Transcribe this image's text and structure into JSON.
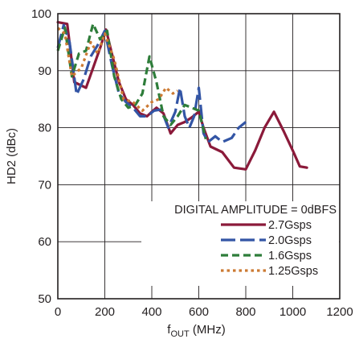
{
  "chart_data": {
    "type": "line",
    "xlabel_main": "f",
    "xlabel_sub": "OUT",
    "xlabel_unit": " (MHz)",
    "ylabel": "HD2 (dBc)",
    "xlim": [
      0,
      1200
    ],
    "ylim": [
      50,
      100
    ],
    "xticks": [
      "0",
      "200",
      "400",
      "600",
      "800",
      "1000",
      "1200"
    ],
    "yticks": [
      "50",
      "60",
      "70",
      "80",
      "90",
      "100"
    ],
    "grid": true,
    "legend_title": "DIGITAL AMPLITUDE = 0dBFS",
    "legend_position": "bottom-right",
    "series": [
      {
        "name": "2.7Gsps",
        "color": "#8b1a3a",
        "dash": "solid",
        "x": [
          0,
          40,
          70,
          120,
          150,
          180,
          205,
          230,
          260,
          290,
          320,
          350,
          380,
          400,
          420,
          450,
          480,
          510,
          540,
          570,
          600,
          620,
          650,
          700,
          750,
          800,
          840,
          880,
          920,
          960,
          1000,
          1030,
          1060
        ],
        "y": [
          98.5,
          98.2,
          88,
          87,
          90.5,
          94,
          97.2,
          93,
          88,
          85,
          84,
          82.5,
          82,
          82.8,
          83.5,
          82.5,
          79,
          80.5,
          81,
          81.8,
          82.8,
          80,
          76.7,
          75.7,
          73,
          72.7,
          76,
          80,
          82.8,
          79.5,
          76,
          73.2,
          73
        ]
      },
      {
        "name": "2.0Gsps",
        "color": "#3355a5",
        "dash": "long",
        "x": [
          0,
          25,
          50,
          80,
          110,
          140,
          170,
          200,
          230,
          260,
          290,
          320,
          350,
          380,
          410,
          440,
          470,
          500,
          520,
          540,
          560,
          580,
          600,
          620,
          640,
          670,
          700,
          740,
          770,
          800
        ],
        "y": [
          94,
          98,
          95,
          85.8,
          88.5,
          92.5,
          94.5,
          97,
          91,
          86,
          84.5,
          83.5,
          82,
          82,
          83,
          83.2,
          80,
          82.8,
          87,
          82,
          80,
          82,
          87,
          79,
          77.5,
          78.5,
          77.5,
          78.2,
          80,
          81
        ]
      },
      {
        "name": "1.6Gsps",
        "color": "#2e7d3a",
        "dash": "medium",
        "x": [
          0,
          30,
          60,
          90,
          120,
          150,
          180,
          210,
          240,
          270,
          300,
          330,
          360,
          390,
          420,
          450,
          480,
          510,
          540,
          570,
          600,
          630
        ],
        "y": [
          93.5,
          97.5,
          89,
          93,
          93.5,
          98.2,
          95.5,
          97,
          89,
          85,
          83.5,
          84,
          86,
          92.5,
          88,
          82,
          80.5,
          82,
          84,
          83.5,
          83,
          78
        ]
      },
      {
        "name": "1.25Gsps",
        "color": "#cc7a33",
        "dash": "dotted",
        "x": [
          0,
          30,
          60,
          100,
          140,
          170,
          200,
          240,
          280,
          320,
          360,
          400,
          430,
          460,
          490,
          510
        ],
        "y": [
          97.5,
          96.5,
          89,
          90.5,
          95,
          93,
          96.5,
          92,
          85,
          84.5,
          83,
          84.5,
          85,
          87,
          86,
          86.5
        ]
      }
    ]
  }
}
